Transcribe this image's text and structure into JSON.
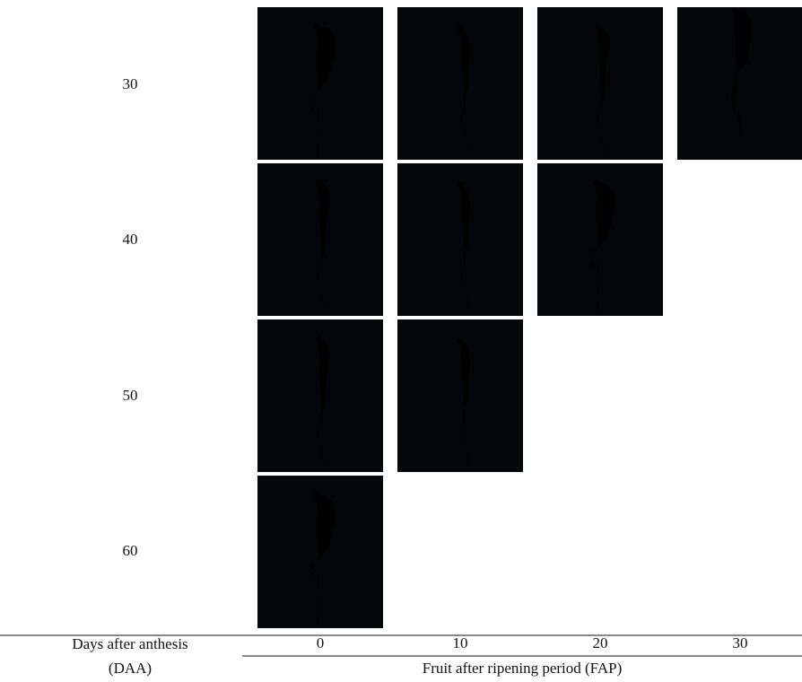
{
  "figure": {
    "rows": [
      {
        "label": "30"
      },
      {
        "label": "40"
      },
      {
        "label": "50"
      },
      {
        "label": "60"
      }
    ],
    "row_axis": {
      "title": "Days after anthesis",
      "abbreviation": "(DAA)"
    },
    "columns": [
      {
        "label": "0"
      },
      {
        "label": "10"
      },
      {
        "label": "20"
      },
      {
        "label": "30"
      }
    ],
    "column_axis": {
      "title": "Fruit after ripening period (FAP)"
    }
  }
}
